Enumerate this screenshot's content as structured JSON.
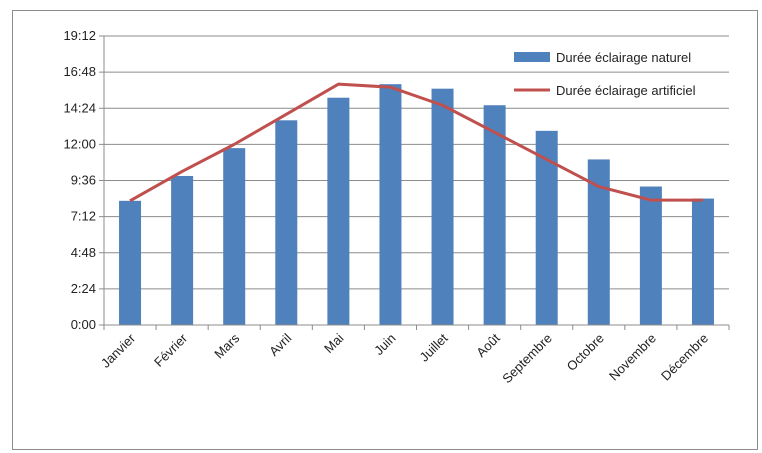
{
  "chart_data": {
    "type": "bar",
    "title": "",
    "xlabel": "",
    "ylabel": "",
    "categories": [
      "Janvier",
      "Février",
      "Mars",
      "Avril",
      "Mai",
      "Juin",
      "Juillet",
      "Août",
      "Septembre",
      "Octobre",
      "Novembre",
      "Décembre"
    ],
    "y_ticks": [
      "0:00",
      "2:24",
      "4:48",
      "7:12",
      "9:36",
      "12:00",
      "14:24",
      "16:48",
      "19:12"
    ],
    "ylim_hours": [
      0,
      19.2
    ],
    "y_unit": "hours",
    "grid": true,
    "legend_position": "top-right",
    "series": [
      {
        "name": "Durée éclairage naturel",
        "kind": "bar",
        "color": "#4f81bd",
        "values": [
          8.25,
          9.9,
          11.75,
          13.6,
          15.1,
          16.0,
          15.7,
          14.6,
          12.9,
          11.0,
          9.2,
          8.4
        ]
      },
      {
        "name": "Durée éclairage artificiel",
        "kind": "line",
        "color": "#c0504d",
        "values": [
          8.25,
          10.2,
          12.0,
          14.0,
          16.0,
          15.8,
          14.6,
          12.8,
          11.0,
          9.2,
          8.3,
          8.3
        ]
      }
    ]
  }
}
